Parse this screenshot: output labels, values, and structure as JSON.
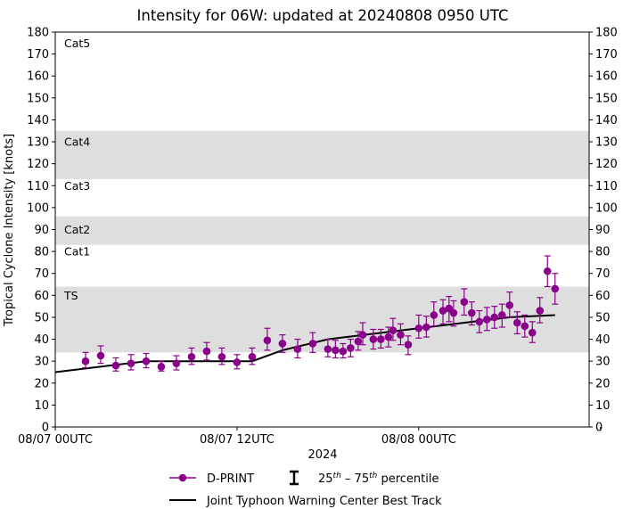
{
  "chart_data": {
    "type": "line",
    "title": "Intensity for 06W: updated at 20240808 0950 UTC",
    "xlabel": "2024",
    "ylabel": "Tropical Cyclone Intensity [knots]",
    "x_units": "hours since 08/07 00UTC",
    "xlim": [
      0,
      35.25
    ],
    "ylim": [
      0,
      180
    ],
    "yticks": [
      0,
      10,
      20,
      30,
      40,
      50,
      60,
      70,
      80,
      90,
      100,
      110,
      120,
      130,
      140,
      150,
      160,
      170,
      180
    ],
    "xticks": [
      {
        "x": 0,
        "label": "08/07 00UTC"
      },
      {
        "x": 12,
        "label": "08/07 12UTC"
      },
      {
        "x": 24,
        "label": "08/08 00UTC"
      },
      {
        "x": 36,
        "label": ""
      }
    ],
    "bands": [
      {
        "name": "TS",
        "y0": 34,
        "y1": 64,
        "label_y": 60,
        "shaded": true
      },
      {
        "name": "Cat1",
        "y0": 64,
        "y1": 83,
        "label_y": 80,
        "shaded": false
      },
      {
        "name": "Cat2",
        "y0": 83,
        "y1": 96,
        "label_y": 90,
        "shaded": true
      },
      {
        "name": "Cat3",
        "y0": 96,
        "y1": 113,
        "label_y": 110,
        "shaded": false
      },
      {
        "name": "Cat4",
        "y0": 113,
        "y1": 135,
        "label_y": 130,
        "shaded": true
      },
      {
        "name": "Cat5",
        "y0": 135,
        "y1": 180,
        "label_y": 175,
        "shaded": false
      }
    ],
    "series": [
      {
        "name": "D-PRINT",
        "color": "#8b008b",
        "points": [
          {
            "x": 2.0,
            "y": 30,
            "lo": 27,
            "hi": 34
          },
          {
            "x": 3.0,
            "y": 32.5,
            "lo": 29,
            "hi": 37
          },
          {
            "x": 4.0,
            "y": 28,
            "lo": 25.5,
            "hi": 31.5
          },
          {
            "x": 5.0,
            "y": 29,
            "lo": 26,
            "hi": 33
          },
          {
            "x": 6.0,
            "y": 30,
            "lo": 27,
            "hi": 33.5
          },
          {
            "x": 7.0,
            "y": 27.5,
            "lo": 25.5,
            "hi": 30
          },
          {
            "x": 8.0,
            "y": 29,
            "lo": 26,
            "hi": 32.5
          },
          {
            "x": 9.0,
            "y": 32,
            "lo": 28.5,
            "hi": 36
          },
          {
            "x": 10.0,
            "y": 34.5,
            "lo": 30.5,
            "hi": 38.5
          },
          {
            "x": 11.0,
            "y": 32,
            "lo": 28.5,
            "hi": 36
          },
          {
            "x": 12.0,
            "y": 29.5,
            "lo": 26.5,
            "hi": 33
          },
          {
            "x": 13.0,
            "y": 32,
            "lo": 28.5,
            "hi": 36
          },
          {
            "x": 14.0,
            "y": 39.5,
            "lo": 35,
            "hi": 45
          },
          {
            "x": 15.0,
            "y": 38,
            "lo": 34,
            "hi": 42
          },
          {
            "x": 16.0,
            "y": 35.5,
            "lo": 31.5,
            "hi": 40
          },
          {
            "x": 17.0,
            "y": 38,
            "lo": 34,
            "hi": 43
          },
          {
            "x": 18.0,
            "y": 35.5,
            "lo": 32,
            "hi": 40
          },
          {
            "x": 18.5,
            "y": 35,
            "lo": 31.5,
            "hi": 39.5
          },
          {
            "x": 19.0,
            "y": 34.5,
            "lo": 31.5,
            "hi": 38
          },
          {
            "x": 19.5,
            "y": 36,
            "lo": 32,
            "hi": 40
          },
          {
            "x": 20.0,
            "y": 39,
            "lo": 35,
            "hi": 43.5
          },
          {
            "x": 20.3,
            "y": 42,
            "lo": 37.5,
            "hi": 47.5
          },
          {
            "x": 21.0,
            "y": 40,
            "lo": 35.5,
            "hi": 44.5
          },
          {
            "x": 21.5,
            "y": 40,
            "lo": 36,
            "hi": 44.5
          },
          {
            "x": 22.0,
            "y": 41,
            "lo": 36.5,
            "hi": 45.5
          },
          {
            "x": 22.3,
            "y": 44,
            "lo": 39.5,
            "hi": 49.5
          },
          {
            "x": 22.8,
            "y": 42,
            "lo": 37.5,
            "hi": 47
          },
          {
            "x": 23.3,
            "y": 37.5,
            "lo": 33,
            "hi": 41.5
          },
          {
            "x": 24.0,
            "y": 45,
            "lo": 40.5,
            "hi": 51
          },
          {
            "x": 24.5,
            "y": 45.5,
            "lo": 41,
            "hi": 50.5
          },
          {
            "x": 25.0,
            "y": 51,
            "lo": 46,
            "hi": 57
          },
          {
            "x": 25.6,
            "y": 53,
            "lo": 47,
            "hi": 58
          },
          {
            "x": 26.0,
            "y": 54,
            "lo": 48,
            "hi": 59.5
          },
          {
            "x": 26.3,
            "y": 52,
            "lo": 46,
            "hi": 57.5
          },
          {
            "x": 27.0,
            "y": 57,
            "lo": 51,
            "hi": 63
          },
          {
            "x": 27.5,
            "y": 52,
            "lo": 46.5,
            "hi": 57
          },
          {
            "x": 28.0,
            "y": 48,
            "lo": 43,
            "hi": 53
          },
          {
            "x": 28.5,
            "y": 49,
            "lo": 44,
            "hi": 54.5
          },
          {
            "x": 29.0,
            "y": 50,
            "lo": 45,
            "hi": 55
          },
          {
            "x": 29.5,
            "y": 51,
            "lo": 45.5,
            "hi": 56
          },
          {
            "x": 30.0,
            "y": 55.5,
            "lo": 50,
            "hi": 61.5
          },
          {
            "x": 30.5,
            "y": 47.5,
            "lo": 42.5,
            "hi": 52.5
          },
          {
            "x": 31.0,
            "y": 46,
            "lo": 41,
            "hi": 51
          },
          {
            "x": 31.5,
            "y": 43,
            "lo": 38.5,
            "hi": 48
          },
          {
            "x": 32.0,
            "y": 53,
            "lo": 47.5,
            "hi": 59
          },
          {
            "x": 32.5,
            "y": 71,
            "lo": 64,
            "hi": 78
          },
          {
            "x": 33.0,
            "y": 63,
            "lo": 56,
            "hi": 70
          }
        ]
      },
      {
        "name": "Joint Typhoon Warning Center Best Track",
        "color": "#000000",
        "x": [
          0,
          6,
          12,
          13,
          15,
          18,
          24,
          30,
          33
        ],
        "y": [
          25,
          30,
          30,
          30,
          35,
          40,
          45,
          50,
          51
        ]
      }
    ],
    "legend": {
      "placement": "bottom",
      "entries": [
        {
          "key": "dprint",
          "label": "D-PRINT"
        },
        {
          "key": "pct",
          "label_parts": [
            "25",
            "th",
            " – 75",
            "th",
            " percentile"
          ]
        },
        {
          "key": "jtwc",
          "label": "Joint Typhoon Warning Center Best Track"
        }
      ]
    }
  }
}
